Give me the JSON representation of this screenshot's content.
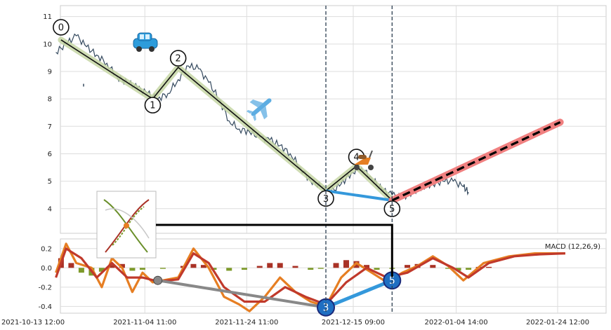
{
  "chart_data": [
    {
      "type": "line",
      "panel": "price",
      "x_ticks": [
        "2021-10-13 12:00",
        "2021-11-04 11:00",
        "2021-11-24 11:00",
        "2021-12-15 09:00",
        "2022-01-04 14:00",
        "2022-01-24 12:00"
      ],
      "y_ticks": [
        4,
        5,
        6,
        7,
        8,
        9,
        10,
        11
      ],
      "ylim": [
        3.1,
        11.4
      ],
      "grid": true,
      "price_series": [
        {
          "x": "2021-10-18",
          "y": 9.7
        },
        {
          "x": "2021-10-20",
          "y": 10.0
        },
        {
          "x": "2021-10-22",
          "y": 10.3
        },
        {
          "x": "2021-10-24",
          "y": 9.9
        },
        {
          "x": "2021-10-26",
          "y": 9.6
        },
        {
          "x": "2021-10-28",
          "y": 9.3
        },
        {
          "x": "2021-10-30",
          "y": 8.8
        },
        {
          "x": "2021-11-01",
          "y": 8.6
        },
        {
          "x": "2021-11-03",
          "y": 8.4
        },
        {
          "x": "2021-11-05",
          "y": 8.2
        },
        {
          "x": "2021-11-07",
          "y": 8.0
        },
        {
          "x": "2021-11-09",
          "y": 8.2
        },
        {
          "x": "2021-11-11",
          "y": 8.7
        },
        {
          "x": "2021-11-13",
          "y": 9.2
        },
        {
          "x": "2021-11-15",
          "y": 9.1
        },
        {
          "x": "2021-11-17",
          "y": 8.6
        },
        {
          "x": "2021-11-19",
          "y": 8.0
        },
        {
          "x": "2021-11-21",
          "y": 7.2
        },
        {
          "x": "2021-11-23",
          "y": 6.9
        },
        {
          "x": "2021-11-25",
          "y": 6.8
        },
        {
          "x": "2021-11-27",
          "y": 6.6
        },
        {
          "x": "2021-11-29",
          "y": 6.5
        },
        {
          "x": "2021-12-01",
          "y": 6.3
        },
        {
          "x": "2021-12-03",
          "y": 6.0
        },
        {
          "x": "2021-12-05",
          "y": 5.5
        },
        {
          "x": "2021-12-07",
          "y": 5.0
        },
        {
          "x": "2021-12-09",
          "y": 4.8
        },
        {
          "x": "2021-12-11",
          "y": 4.6
        },
        {
          "x": "2021-12-13",
          "y": 4.9
        },
        {
          "x": "2021-12-15",
          "y": 5.3
        },
        {
          "x": "2021-12-17",
          "y": 5.5
        },
        {
          "x": "2021-12-19",
          "y": 5.1
        },
        {
          "x": "2021-12-21",
          "y": 4.7
        },
        {
          "x": "2021-12-23",
          "y": 4.5
        },
        {
          "x": "2021-12-25",
          "y": 4.4
        },
        {
          "x": "2021-12-27",
          "y": 4.6
        },
        {
          "x": "2021-12-29",
          "y": 4.8
        },
        {
          "x": "2021-12-31",
          "y": 4.9
        },
        {
          "x": "2022-01-02",
          "y": 5.0
        },
        {
          "x": "2022-01-04",
          "y": 5.0
        },
        {
          "x": "2022-01-06",
          "y": 4.8
        },
        {
          "x": "2022-01-07",
          "y": 4.6
        }
      ],
      "waves": [
        {
          "label": "0",
          "x": "2021-10-19",
          "y": 10.15
        },
        {
          "label": "1",
          "x": "2021-11-06",
          "y": 8.0
        },
        {
          "label": "2",
          "x": "2021-11-11",
          "y": 9.15
        },
        {
          "label": "3",
          "x": "2021-12-10",
          "y": 4.65
        },
        {
          "label": "4",
          "x": "2021-12-16",
          "y": 5.55
        },
        {
          "label": "5",
          "x": "2021-12-23",
          "y": 4.3
        }
      ],
      "projection": [
        {
          "x": "2021-12-23",
          "y": 4.3
        },
        {
          "x": "2022-01-25",
          "y": 7.15
        }
      ],
      "vlines": [
        "2021-12-10",
        "2021-12-23"
      ]
    },
    {
      "type": "line",
      "panel": "macd",
      "title": "MACD (12,26,9)",
      "y_ticks": [
        -0.4,
        -0.2,
        0.0,
        0.2
      ],
      "ylim": [
        -0.47,
        0.3
      ],
      "macd_line": [
        {
          "x": "2021-10-18",
          "y": -0.05
        },
        {
          "x": "2021-10-20",
          "y": 0.25
        },
        {
          "x": "2021-10-22",
          "y": 0.05
        },
        {
          "x": "2021-10-25",
          "y": 0.0
        },
        {
          "x": "2021-10-27",
          "y": -0.2
        },
        {
          "x": "2021-10-29",
          "y": 0.1
        },
        {
          "x": "2021-10-31",
          "y": 0.0
        },
        {
          "x": "2021-11-02",
          "y": -0.25
        },
        {
          "x": "2021-11-04",
          "y": -0.05
        },
        {
          "x": "2021-11-06",
          "y": -0.15
        },
        {
          "x": "2021-11-08",
          "y": -0.13
        },
        {
          "x": "2021-11-11",
          "y": -0.1
        },
        {
          "x": "2021-11-14",
          "y": 0.2
        },
        {
          "x": "2021-11-17",
          "y": 0.0
        },
        {
          "x": "2021-11-20",
          "y": -0.3
        },
        {
          "x": "2021-11-23",
          "y": -0.38
        },
        {
          "x": "2021-11-25",
          "y": -0.45
        },
        {
          "x": "2021-11-28",
          "y": -0.3
        },
        {
          "x": "2021-12-01",
          "y": -0.1
        },
        {
          "x": "2021-12-04",
          "y": -0.25
        },
        {
          "x": "2021-12-07",
          "y": -0.35
        },
        {
          "x": "2021-12-10",
          "y": -0.4
        },
        {
          "x": "2021-12-13",
          "y": -0.1
        },
        {
          "x": "2021-12-16",
          "y": 0.05
        },
        {
          "x": "2021-12-19",
          "y": -0.05
        },
        {
          "x": "2021-12-22",
          "y": -0.15
        },
        {
          "x": "2021-12-25",
          "y": -0.05
        },
        {
          "x": "2021-12-28",
          "y": 0.02
        },
        {
          "x": "2021-12-31",
          "y": 0.12
        },
        {
          "x": "2022-01-03",
          "y": 0.02
        },
        {
          "x": "2022-01-06",
          "y": -0.13
        },
        {
          "x": "2022-01-10",
          "y": 0.05
        },
        {
          "x": "2022-01-15",
          "y": 0.12
        },
        {
          "x": "2022-01-20",
          "y": 0.15
        },
        {
          "x": "2022-01-26",
          "y": 0.15
        }
      ],
      "signal_line": [
        {
          "x": "2021-10-18",
          "y": -0.1
        },
        {
          "x": "2021-10-20",
          "y": 0.2
        },
        {
          "x": "2021-10-23",
          "y": 0.1
        },
        {
          "x": "2021-10-26",
          "y": -0.1
        },
        {
          "x": "2021-10-29",
          "y": 0.05
        },
        {
          "x": "2021-11-01",
          "y": -0.1
        },
        {
          "x": "2021-11-04",
          "y": -0.1
        },
        {
          "x": "2021-11-07",
          "y": -0.14
        },
        {
          "x": "2021-11-11",
          "y": -0.12
        },
        {
          "x": "2021-11-14",
          "y": 0.15
        },
        {
          "x": "2021-11-17",
          "y": 0.05
        },
        {
          "x": "2021-11-20",
          "y": -0.2
        },
        {
          "x": "2021-11-24",
          "y": -0.35
        },
        {
          "x": "2021-11-28",
          "y": -0.35
        },
        {
          "x": "2021-12-02",
          "y": -0.2
        },
        {
          "x": "2021-12-06",
          "y": -0.3
        },
        {
          "x": "2021-12-10",
          "y": -0.38
        },
        {
          "x": "2021-12-14",
          "y": -0.15
        },
        {
          "x": "2021-12-18",
          "y": 0.0
        },
        {
          "x": "2021-12-22",
          "y": -0.1
        },
        {
          "x": "2021-12-26",
          "y": -0.05
        },
        {
          "x": "2021-12-31",
          "y": 0.1
        },
        {
          "x": "2022-01-04",
          "y": 0.0
        },
        {
          "x": "2022-01-07",
          "y": -0.1
        },
        {
          "x": "2022-01-11",
          "y": 0.05
        },
        {
          "x": "2022-01-16",
          "y": 0.12
        },
        {
          "x": "2022-01-21",
          "y": 0.14
        },
        {
          "x": "2022-01-26",
          "y": 0.15
        }
      ],
      "histogram": [
        {
          "x": "2021-10-19",
          "y": 0.1
        },
        {
          "x": "2021-10-21",
          "y": 0.05
        },
        {
          "x": "2021-10-23",
          "y": -0.05
        },
        {
          "x": "2021-10-25",
          "y": -0.08
        },
        {
          "x": "2021-10-27",
          "y": -0.04
        },
        {
          "x": "2021-10-29",
          "y": 0.03
        },
        {
          "x": "2021-10-31",
          "y": 0.04
        },
        {
          "x": "2021-11-02",
          "y": -0.03
        },
        {
          "x": "2021-11-04",
          "y": -0.02
        },
        {
          "x": "2021-11-08",
          "y": -0.01
        },
        {
          "x": "2021-11-12",
          "y": 0.02
        },
        {
          "x": "2021-11-14",
          "y": 0.04
        },
        {
          "x": "2021-11-16",
          "y": 0.03
        },
        {
          "x": "2021-11-18",
          "y": -0.02
        },
        {
          "x": "2021-11-21",
          "y": -0.03
        },
        {
          "x": "2021-11-24",
          "y": -0.02
        },
        {
          "x": "2021-11-27",
          "y": 0.02
        },
        {
          "x": "2021-11-29",
          "y": 0.05
        },
        {
          "x": "2021-12-01",
          "y": 0.05
        },
        {
          "x": "2021-12-04",
          "y": 0.02
        },
        {
          "x": "2021-12-07",
          "y": -0.02
        },
        {
          "x": "2021-12-09",
          "y": -0.01
        },
        {
          "x": "2021-12-12",
          "y": 0.05
        },
        {
          "x": "2021-12-14",
          "y": 0.08
        },
        {
          "x": "2021-12-16",
          "y": 0.07
        },
        {
          "x": "2021-12-18",
          "y": 0.03
        },
        {
          "x": "2021-12-20",
          "y": -0.02
        },
        {
          "x": "2021-12-23",
          "y": -0.01
        },
        {
          "x": "2021-12-26",
          "y": 0.03
        },
        {
          "x": "2021-12-28",
          "y": 0.04
        },
        {
          "x": "2021-12-31",
          "y": 0.03
        },
        {
          "x": "2022-01-03",
          "y": -0.01
        },
        {
          "x": "2022-01-05",
          "y": -0.03
        },
        {
          "x": "2022-01-07",
          "y": -0.02
        },
        {
          "x": "2022-01-09",
          "y": 0.01
        },
        {
          "x": "2022-01-11",
          "y": 0.01
        }
      ],
      "waves": [
        {
          "label": "3",
          "x": "2021-12-10",
          "y": -0.41
        },
        {
          "label": "5",
          "x": "2021-12-23",
          "y": -0.13
        }
      ],
      "gray_point": {
        "x": "2021-11-07",
        "y": -0.13
      }
    }
  ],
  "colors": {
    "price": "#34495e",
    "wave_band": "#c5d6a4",
    "wave_line": "#111111",
    "projection_band": "#f08080",
    "projection_line": "#000000",
    "divergence": "#3498db",
    "gray_divergence": "#888888",
    "macd_line": "#e67e22",
    "signal_line": "#c0392b",
    "hist_pos": "#a93226",
    "hist_neg": "#7d9a2a",
    "wave_badge": "#1f6fc2",
    "vline": "#2c3e50"
  },
  "icons": [
    "car-icon",
    "airplane-icon",
    "scooter-icon",
    "cycle-logo"
  ]
}
